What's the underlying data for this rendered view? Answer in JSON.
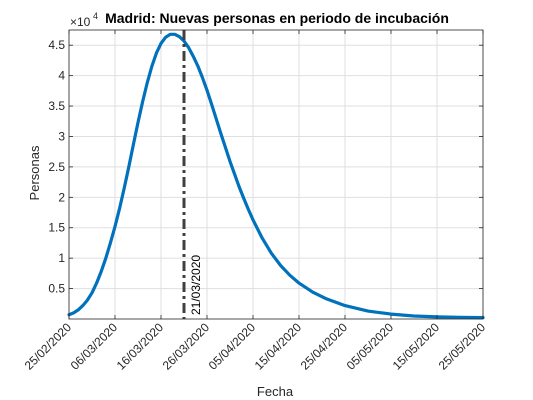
{
  "chart_data": {
    "type": "line",
    "title": "Madrid: Nuevas personas en periodo de incubación",
    "xlabel": "Fecha",
    "ylabel": "Personas",
    "y_exponent_label": "×10",
    "y_exponent": "4",
    "x_dates": [
      "25/02/2020",
      "26/02/2020",
      "27/02/2020",
      "28/02/2020",
      "29/02/2020",
      "01/03/2020",
      "02/03/2020",
      "03/03/2020",
      "04/03/2020",
      "05/03/2020",
      "06/03/2020",
      "07/03/2020",
      "08/03/2020",
      "09/03/2020",
      "10/03/2020",
      "11/03/2020",
      "12/03/2020",
      "13/03/2020",
      "14/03/2020",
      "15/03/2020",
      "16/03/2020",
      "17/03/2020",
      "18/03/2020",
      "19/03/2020",
      "20/03/2020",
      "21/03/2020",
      "22/03/2020",
      "23/03/2020",
      "24/03/2020",
      "25/03/2020",
      "26/03/2020",
      "27/03/2020",
      "28/03/2020",
      "29/03/2020",
      "30/03/2020",
      "31/03/2020",
      "01/04/2020",
      "02/04/2020",
      "03/04/2020",
      "04/04/2020",
      "05/04/2020",
      "07/04/2020",
      "09/04/2020",
      "11/04/2020",
      "13/04/2020",
      "15/04/2020",
      "18/04/2020",
      "21/04/2020",
      "25/04/2020",
      "30/04/2020",
      "05/05/2020",
      "10/05/2020",
      "15/05/2020",
      "20/05/2020",
      "25/05/2020"
    ],
    "series": [
      {
        "values": [
          700,
          1000,
          1500,
          2200,
          3100,
          4300,
          5900,
          7800,
          10000,
          12500,
          15200,
          18200,
          21500,
          25000,
          28700,
          32300,
          35700,
          38800,
          41500,
          43700,
          45300,
          46300,
          46800,
          46800,
          46400,
          45700,
          44600,
          43200,
          41600,
          39700,
          37600,
          35300,
          32900,
          30500,
          28200,
          25900,
          23800,
          21700,
          19800,
          18000,
          16300,
          13300,
          10800,
          8800,
          7200,
          5900,
          4400,
          3300,
          2200,
          1300,
          800,
          500,
          350,
          280,
          230
        ],
        "color": "#0072BD"
      }
    ],
    "vline": {
      "date": "21/03/2020",
      "label": "21/03/2020",
      "color": "#404040"
    },
    "x_ticks": [
      "25/02/2020",
      "06/03/2020",
      "16/03/2020",
      "26/03/2020",
      "05/04/2020",
      "15/04/2020",
      "25/04/2020",
      "05/05/2020",
      "15/05/2020",
      "25/05/2020"
    ],
    "y_ticks": [
      0.5,
      1,
      1.5,
      2,
      2.5,
      3,
      3.5,
      4,
      4.5
    ],
    "y_tick_labels": [
      "0.5",
      "1",
      "1.5",
      "2",
      "2.5",
      "3",
      "3.5",
      "4",
      "4.5"
    ],
    "xlim": [
      "25/02/2020",
      "25/05/2020"
    ],
    "ylim": [
      0,
      47500
    ],
    "grid": true
  }
}
